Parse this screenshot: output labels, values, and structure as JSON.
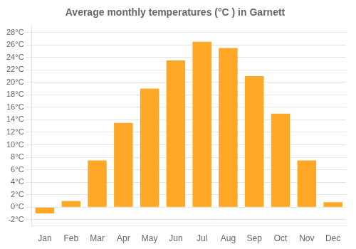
{
  "chart_data": {
    "type": "bar",
    "title": "Average monthly temperatures (°C ) in Garnett",
    "categories": [
      "Jan",
      "Feb",
      "Mar",
      "Apr",
      "May",
      "Jun",
      "Jul",
      "Aug",
      "Sep",
      "Oct",
      "Nov",
      "Dec"
    ],
    "values": [
      -1.0,
      1.0,
      7.5,
      13.5,
      19.0,
      23.5,
      26.5,
      25.5,
      21.0,
      15.0,
      7.5,
      0.8
    ],
    "color": "#FFA726",
    "ylim": [
      -3,
      29
    ],
    "yticks": [
      {
        "value": -2,
        "label": "-2°C"
      },
      {
        "value": 0,
        "label": "0°C"
      },
      {
        "value": 2,
        "label": "2°C"
      },
      {
        "value": 4,
        "label": "4°C"
      },
      {
        "value": 6,
        "label": "6°C"
      },
      {
        "value": 8,
        "label": "8°C"
      },
      {
        "value": 10,
        "label": "10°C"
      },
      {
        "value": 12,
        "label": "12°C"
      },
      {
        "value": 14,
        "label": "14°C"
      },
      {
        "value": 16,
        "label": "16°C"
      },
      {
        "value": 18,
        "label": "18°C"
      },
      {
        "value": 20,
        "label": "20°C"
      },
      {
        "value": 22,
        "label": "22°C"
      },
      {
        "value": 24,
        "label": "24°C"
      },
      {
        "value": 26,
        "label": "26°C"
      },
      {
        "value": 28,
        "label": "28°C"
      }
    ],
    "grid": true
  }
}
